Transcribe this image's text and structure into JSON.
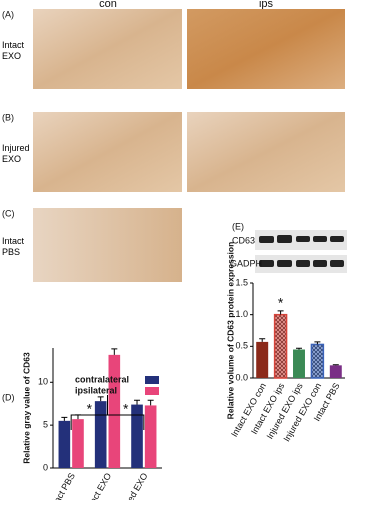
{
  "panels": [
    "(A)",
    "(B)",
    "(C)",
    "(D)",
    "(E)"
  ],
  "columns": [
    "con",
    "ips"
  ],
  "rows": [
    "Intact EXO",
    "Injured EXO",
    "Intact PBS"
  ],
  "blot": [
    "CD63",
    "GADPH"
  ],
  "chart_data": [
    {
      "type": "bar",
      "ylabel": "Relative gray value of CD63",
      "categories": [
        "Intact PBS",
        "Intact EXO",
        "Injured EXO"
      ],
      "series": [
        {
          "name": "contralateral",
          "color": "#23307a",
          "values": [
            5.5,
            7.8,
            7.4
          ],
          "errors": [
            0.4,
            0.5,
            0.5
          ]
        },
        {
          "name": "ipsilateral",
          "color": "#e8457a",
          "values": [
            5.7,
            13.2,
            7.3
          ],
          "errors": [
            0.5,
            0.7,
            0.6
          ]
        }
      ],
      "ylim": [
        0,
        14
      ],
      "yticks": [
        0,
        5,
        10
      ],
      "annotations": [
        "*",
        "*"
      ]
    },
    {
      "type": "bar",
      "ylabel": "Relative volume of CD63 protein expression",
      "categories": [
        "Intact EXO con",
        "Intact EXO ips",
        "Injured EXO ips",
        "Injured EXO con",
        "Intact PBS"
      ],
      "values": [
        0.57,
        1.0,
        0.45,
        0.53,
        0.2
      ],
      "errors": [
        0.05,
        0.06,
        0.02,
        0.04,
        0.01
      ],
      "colors": [
        "#8b2a1a",
        "#d6443a",
        "#3b8a55",
        "#3a63b8",
        "#7a2f86"
      ],
      "ylim": [
        0,
        1.5
      ],
      "yticks": [
        {
          "value": 0,
          "label": "0.0"
        },
        0.5,
        {
          "value": 1,
          "label": "1.0"
        },
        1.5
      ],
      "annotations": [
        "*"
      ]
    }
  ]
}
